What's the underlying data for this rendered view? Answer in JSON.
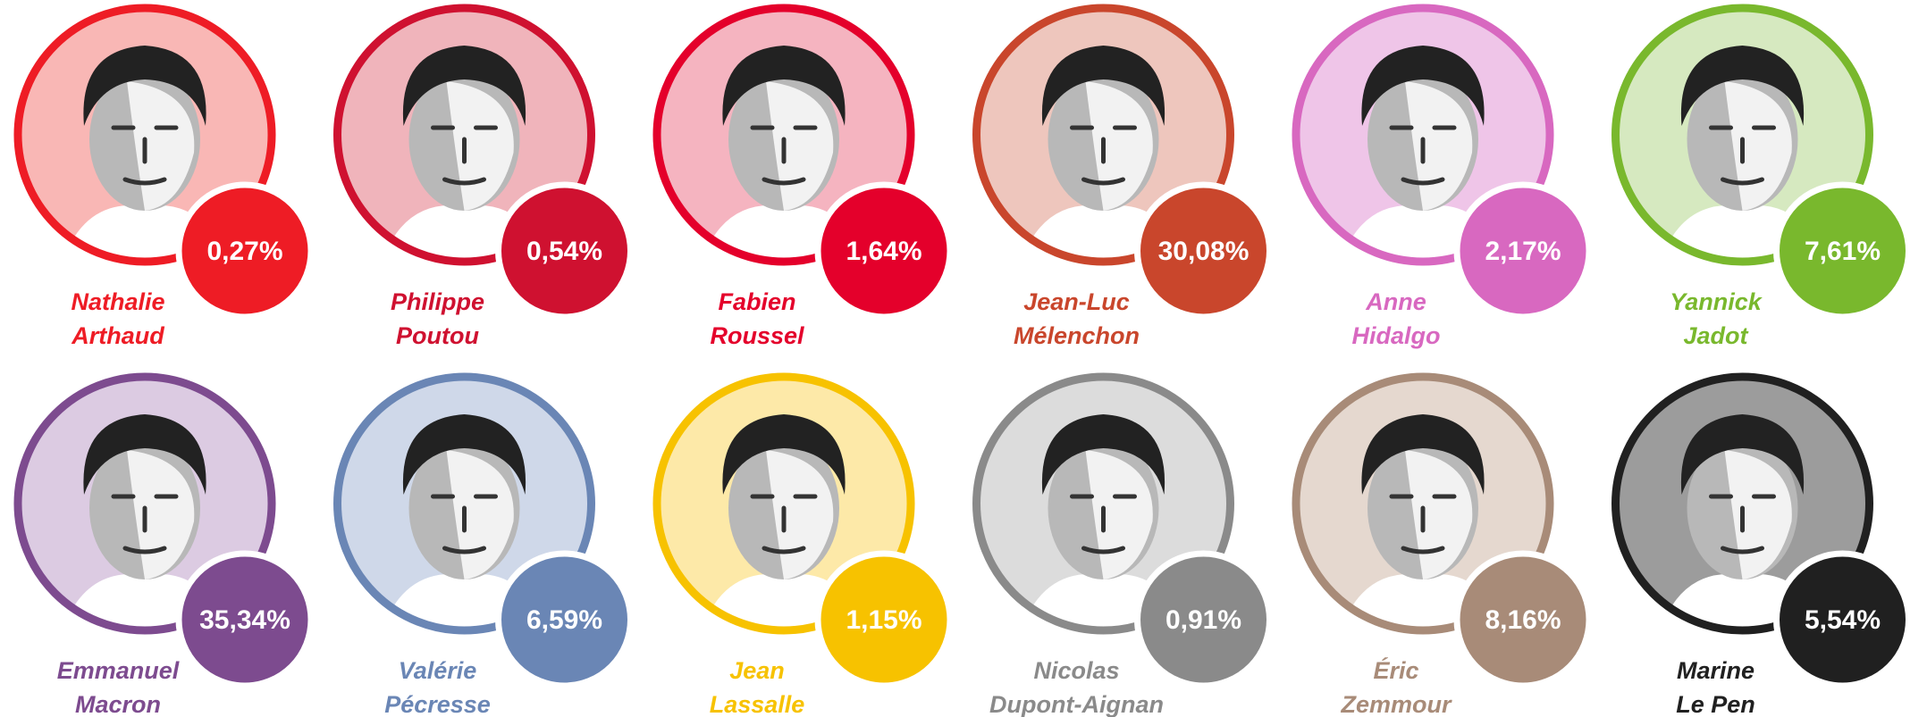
{
  "candidates": [
    {
      "name": [
        "Nathalie",
        "Arthaud"
      ],
      "percent": "0,27%",
      "color": "#ee1c25",
      "background": "#f9b7b5"
    },
    {
      "name": [
        "Philippe",
        "Poutou"
      ],
      "percent": "0,54%",
      "color": "#cf1130",
      "background": "#f0b4bb"
    },
    {
      "name": [
        "Fabien",
        "Roussel"
      ],
      "percent": "1,64%",
      "color": "#e4002b",
      "background": "#f5b4c0"
    },
    {
      "name": [
        "Jean-Luc",
        "Mélenchon"
      ],
      "percent": "30,08%",
      "color": "#c9462c",
      "background": "#eec6bd"
    },
    {
      "name": [
        "Anne",
        "Hidalgo"
      ],
      "percent": "2,17%",
      "color": "#d868c0",
      "background": "#efc5e8"
    },
    {
      "name": [
        "Yannick",
        "Jadot"
      ],
      "percent": "7,61%",
      "color": "#79b82d",
      "background": "#d6e9c0"
    },
    {
      "name": [
        "Emmanuel",
        "Macron"
      ],
      "percent": "35,34%",
      "color": "#7d4b8f",
      "background": "#dccbe2"
    },
    {
      "name": [
        "Valérie",
        "Pécresse"
      ],
      "percent": "6,59%",
      "color": "#6a86b5",
      "background": "#cfd8e9"
    },
    {
      "name": [
        "Jean",
        "Lassalle"
      ],
      "percent": "1,15%",
      "color": "#f7c200",
      "background": "#fde9a8"
    },
    {
      "name": [
        "Nicolas",
        "Dupont-Aignan"
      ],
      "percent": "0,91%",
      "color": "#8a8a8a",
      "background": "#dcdcdc"
    },
    {
      "name": [
        "Éric",
        "Zemmour"
      ],
      "percent": "8,16%",
      "color": "#a88b78",
      "background": "#e5d8cf"
    },
    {
      "name": [
        "Marine",
        "Le Pen"
      ],
      "percent": "5,54%",
      "color": "#202020",
      "background": "#9c9c9c"
    }
  ]
}
